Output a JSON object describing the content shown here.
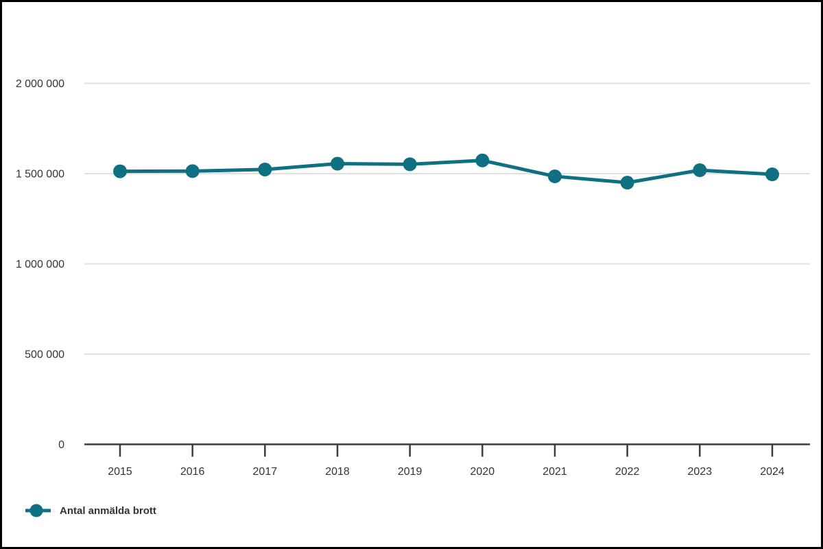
{
  "frame": {
    "background": "#ffffff",
    "border_color": "#000000"
  },
  "legend": {
    "label": "Antal anmälda brott"
  },
  "chart_data": {
    "type": "line",
    "title": "",
    "xlabel": "",
    "ylabel": "",
    "categories": [
      "2015",
      "2016",
      "2017",
      "2018",
      "2019",
      "2020",
      "2021",
      "2022",
      "2023",
      "2024"
    ],
    "series": [
      {
        "name": "Antal anmälda brott",
        "color": "#0e7080",
        "values": [
          1513000,
          1514000,
          1523000,
          1555000,
          1552000,
          1573000,
          1485000,
          1450000,
          1519000,
          1496000
        ]
      }
    ],
    "ylim": [
      0,
      2000000
    ],
    "y_ticks": [
      {
        "value": 0,
        "label": "0"
      },
      {
        "value": 500000,
        "label": "500 000"
      },
      {
        "value": 1000000,
        "label": "1 000 000"
      },
      {
        "value": 1500000,
        "label": "1 500 000"
      },
      {
        "value": 2000000,
        "label": "2 000 000"
      }
    ],
    "grid": true,
    "legend_position": "bottom-left",
    "colors": {
      "grid": "#e0e0e0",
      "axis": "#3c3c3c",
      "text": "#333333"
    }
  }
}
